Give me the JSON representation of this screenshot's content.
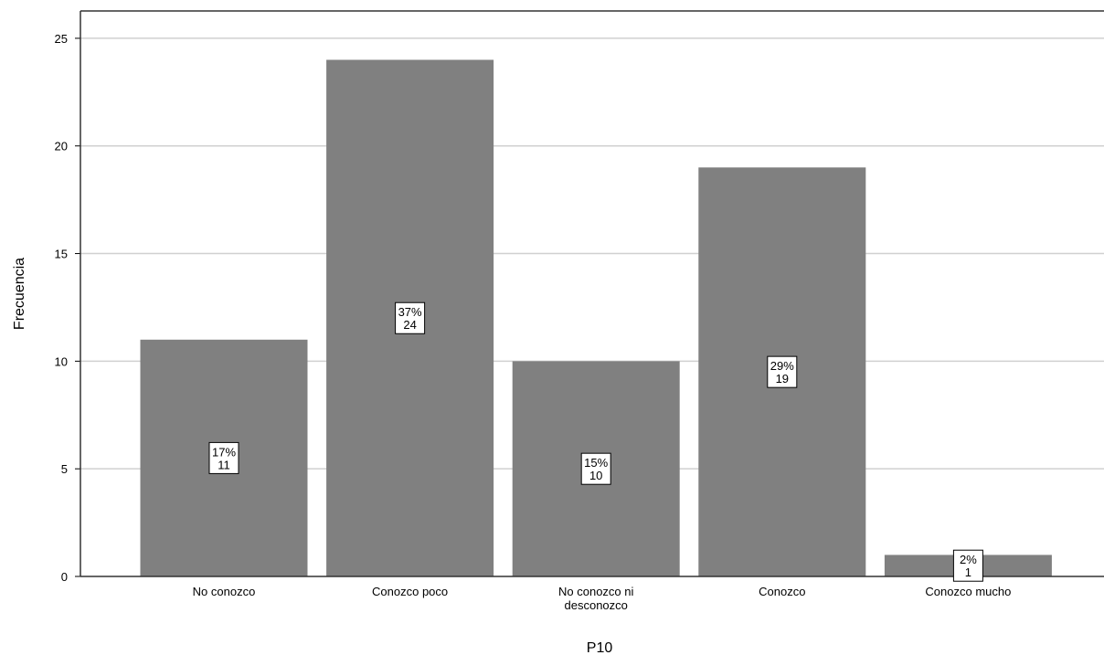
{
  "chart_data": {
    "type": "bar",
    "categories": [
      "No conozco",
      "Conozco poco",
      "No conozco ni desconozco",
      "Conozco",
      "Conozco mucho"
    ],
    "values": [
      11,
      24,
      10,
      19,
      1
    ],
    "percent_labels": [
      "17%",
      "37%",
      "15%",
      "29%",
      "2%"
    ],
    "xlabel": "P10",
    "ylabel": "Frecuencia",
    "ylim": [
      0,
      25
    ],
    "yticks": [
      0,
      5,
      10,
      15,
      20,
      25
    ],
    "grid": true,
    "bar_color": "#808080"
  }
}
